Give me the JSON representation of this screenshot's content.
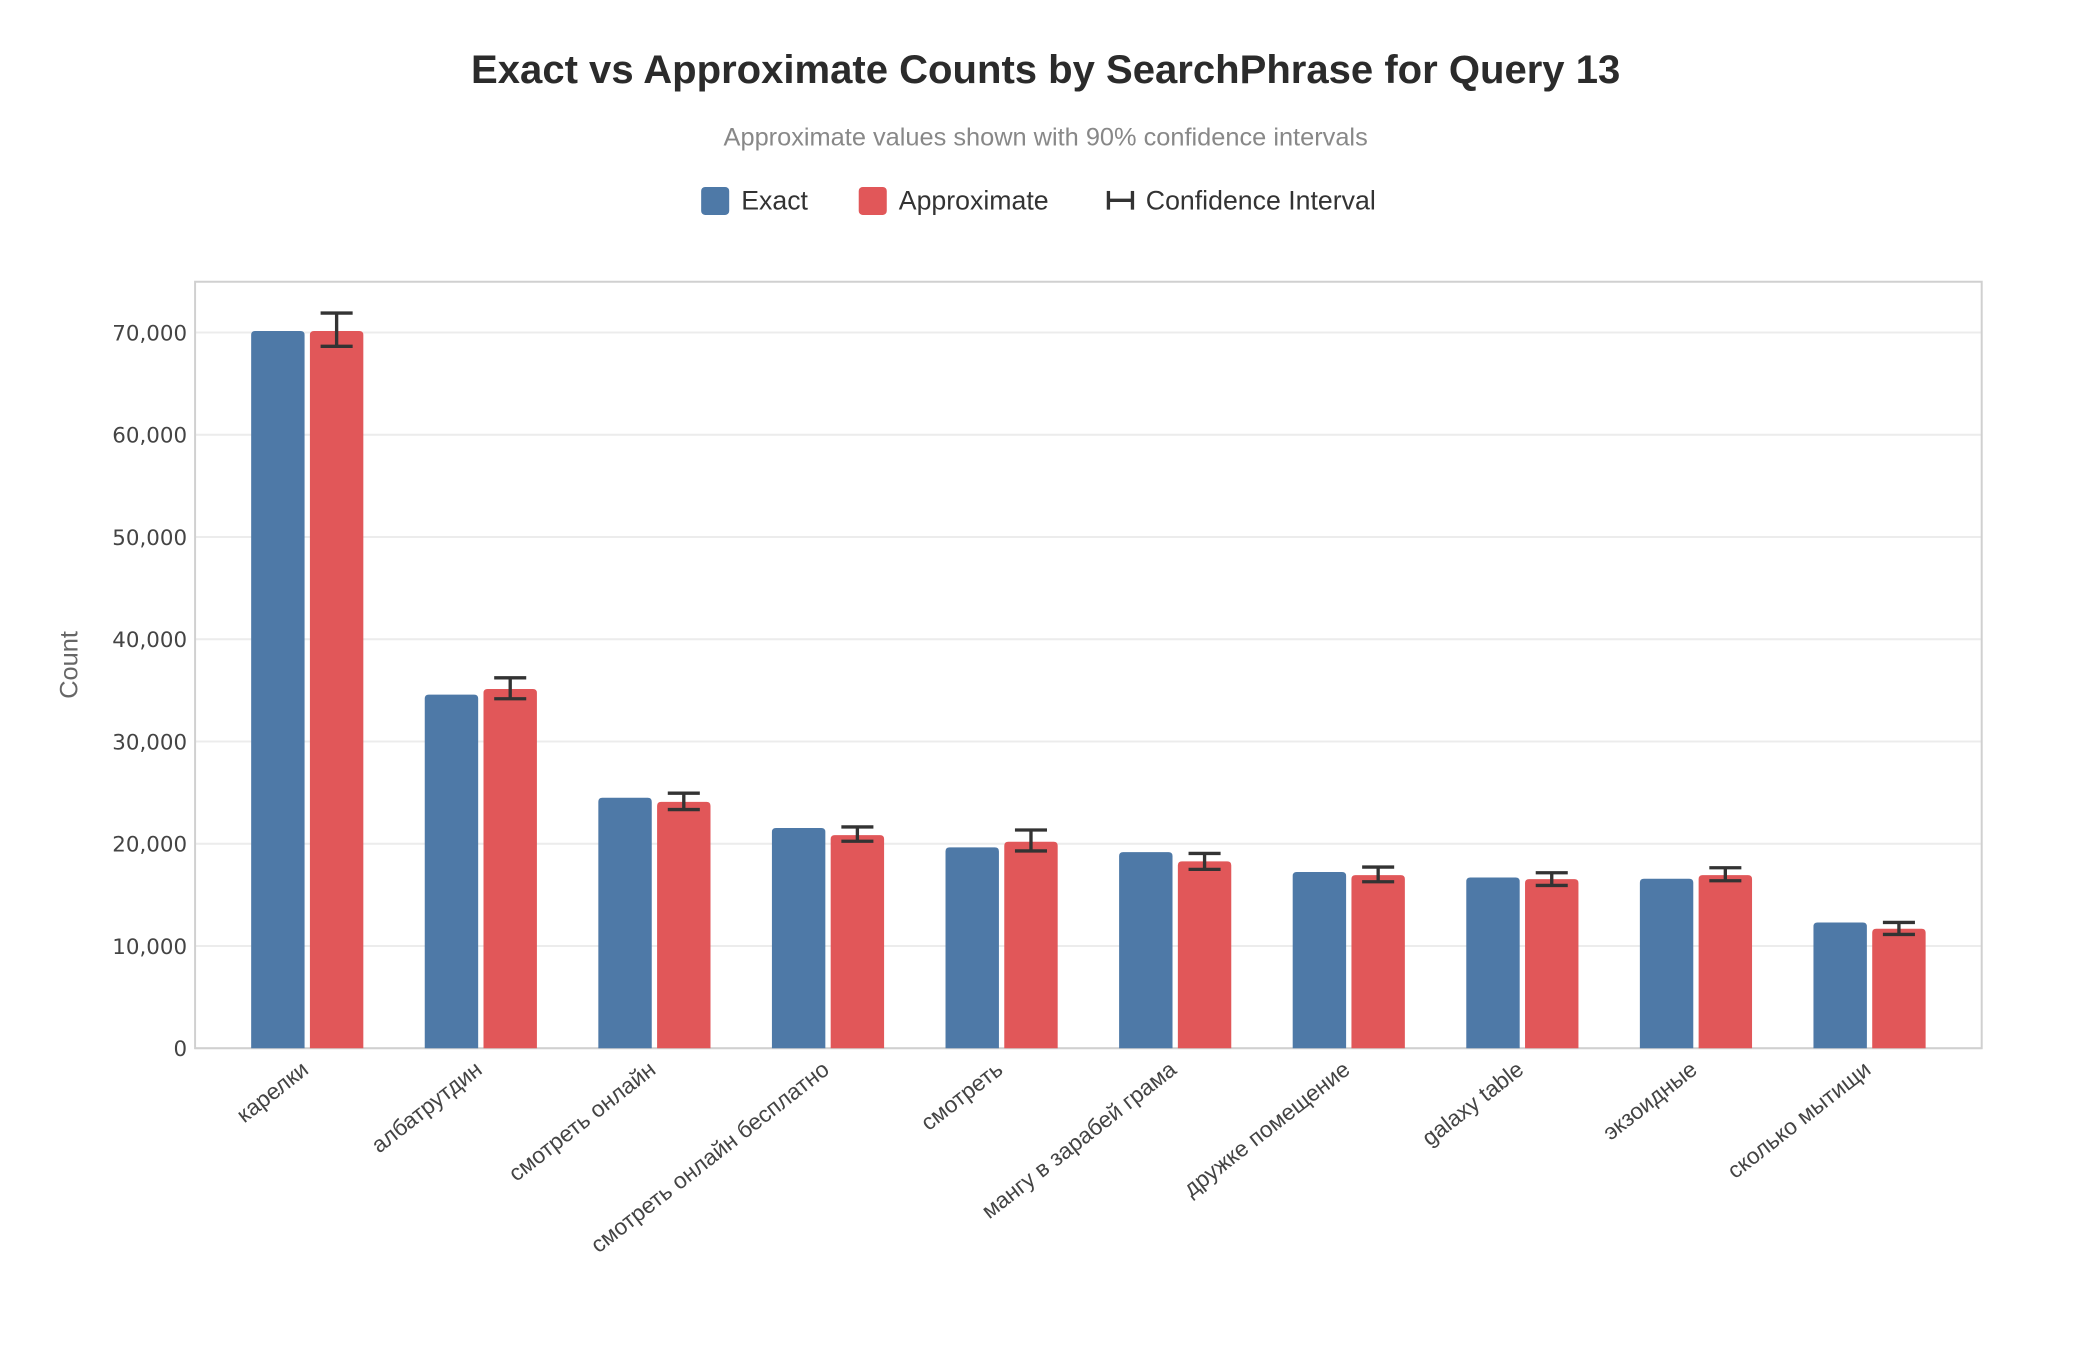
{
  "chart_data": {
    "type": "bar",
    "title": "Exact vs Approximate Counts by SearchPhrase for Query 13",
    "subtitle": "Approximate values shown with 90% confidence intervals",
    "xlabel": "",
    "ylabel": "Count",
    "ylim": [
      0,
      75000
    ],
    "yticks": [
      0,
      10000,
      20000,
      30000,
      40000,
      50000,
      60000,
      70000
    ],
    "ytick_labels": [
      "0",
      "10,000",
      "20,000",
      "30,000",
      "40,000",
      "50,000",
      "60,000",
      "70,000"
    ],
    "grid": true,
    "legend_position": "top-center",
    "legend": [
      "Exact",
      "Approximate",
      "Confidence Interval"
    ],
    "categories": [
      "карелки",
      "албатрутдин",
      "смотреть онлайн",
      "смотреть онлайн бесплатно",
      "смотреть",
      "мангу в зарабей грама",
      "дружке помещение",
      "galaxy table",
      "экзоидные",
      "сколько мытищи"
    ],
    "series": [
      {
        "name": "Exact",
        "color": "#4e79a7",
        "values": [
          70150,
          34580,
          24490,
          21540,
          19640,
          19180,
          17230,
          16700,
          16570,
          12300
        ]
      },
      {
        "name": "Approximate",
        "color": "#e15759",
        "values": [
          70150,
          35130,
          24090,
          20840,
          20190,
          18270,
          16930,
          16540,
          16930,
          11680
        ],
        "ci_low": [
          68650,
          34180,
          23340,
          20240,
          19290,
          17490,
          16280,
          15920,
          16380,
          11130
        ],
        "ci_high": [
          71900,
          36230,
          24940,
          21640,
          21340,
          19050,
          17720,
          17160,
          17650,
          12300
        ]
      }
    ],
    "ci_color": "#333333"
  }
}
